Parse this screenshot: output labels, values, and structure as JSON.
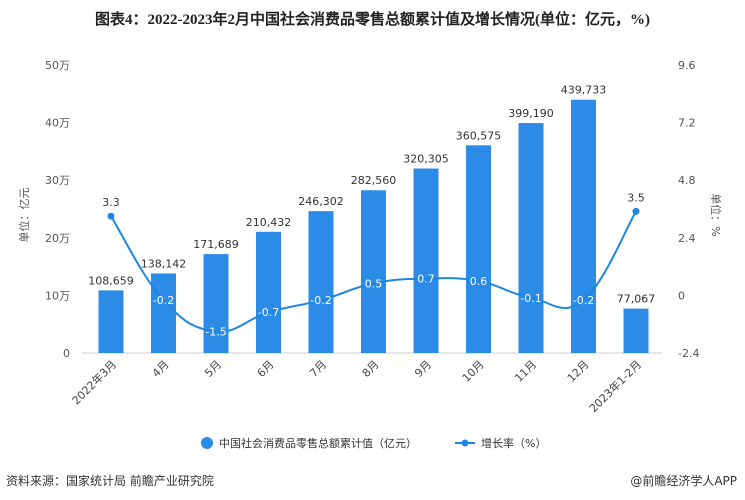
{
  "title": "图表4：2022-2023年2月中国社会消费品零售总额累计值及增长情况(单位：亿元，%)",
  "source": "资料来源：国家统计局 前瞻产业研究院",
  "brand": "@前瞻经济学人APP",
  "colors": {
    "bar": "#2B8BE6",
    "line": "#1F86E0"
  },
  "chart_data": {
    "type": "bar+line",
    "categories": [
      "2022年3月",
      "4月",
      "5月",
      "6月",
      "7月",
      "8月",
      "9月",
      "10月",
      "11月",
      "12月",
      "2023年1-2月"
    ],
    "series": [
      {
        "name": "中国社会消费品零售总额累计值（亿元）",
        "type": "bar",
        "axis": "left",
        "values": [
          108659,
          138142,
          171689,
          210432,
          246302,
          282560,
          320305,
          360575,
          399190,
          439733,
          77067
        ],
        "labels": [
          "108,659",
          "138,142",
          "171,689",
          "210,432",
          "246,302",
          "282,560",
          "320,305",
          "360,575",
          "399,190",
          "439,733",
          "77,067"
        ]
      },
      {
        "name": "增长率（%）",
        "type": "line",
        "axis": "right",
        "values": [
          3.3,
          -0.2,
          -1.5,
          -0.7,
          -0.2,
          0.5,
          0.7,
          0.6,
          -0.1,
          -0.2,
          3.5
        ]
      }
    ],
    "ylabel_left": "单位：亿元",
    "ylabel_right": "单位：%",
    "ylim_left": [
      0,
      500000
    ],
    "yticks_left": [
      "0",
      "10万",
      "20万",
      "30万",
      "40万",
      "50万"
    ],
    "ylim_right": [
      -2.4,
      9.6
    ],
    "yticks_right": [
      "-2.4",
      "0",
      "2.4",
      "4.8",
      "7.2",
      "9.6"
    ],
    "legend": "bottom",
    "grid": false
  }
}
